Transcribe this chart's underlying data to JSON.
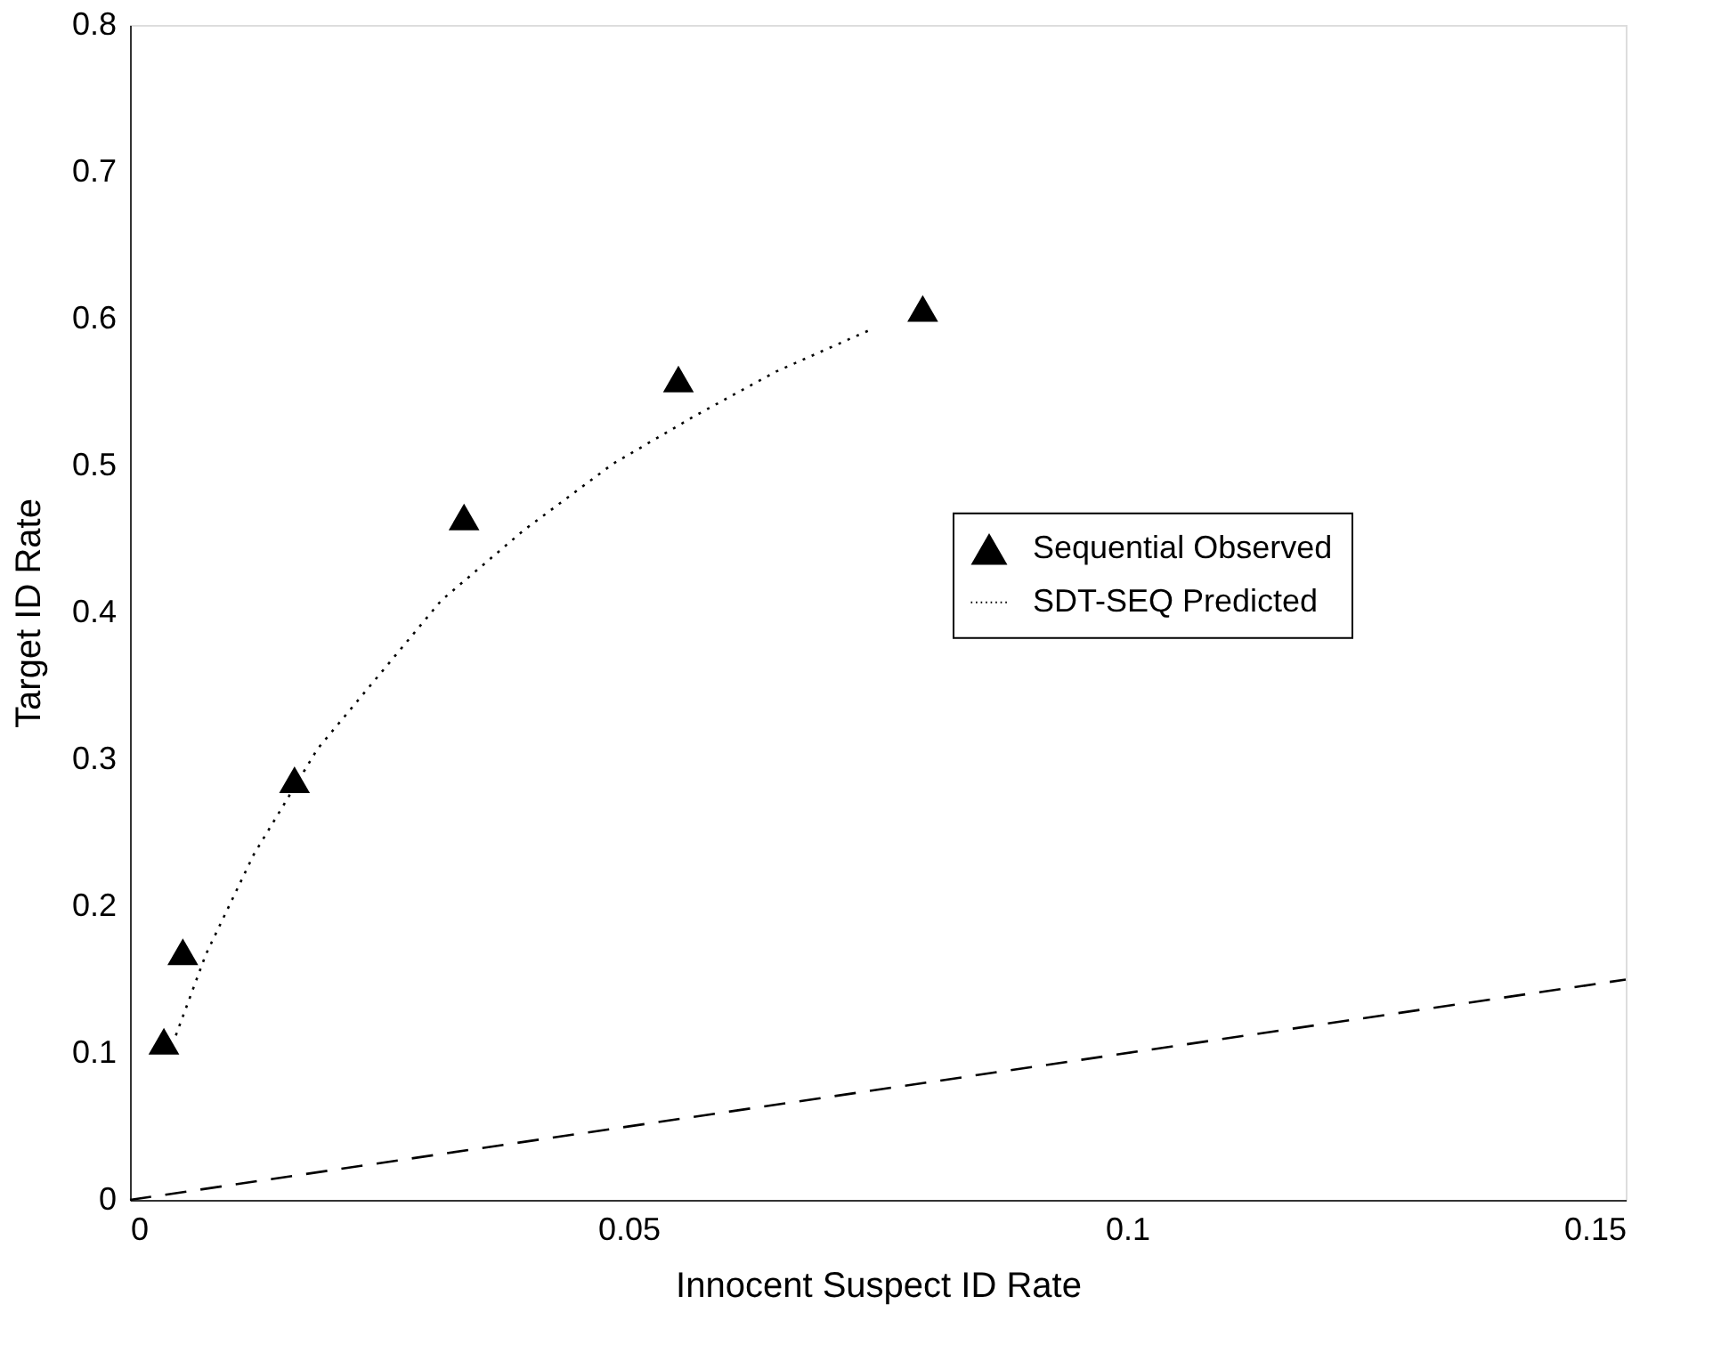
{
  "chart_data": {
    "type": "scatter",
    "xlabel": "Innocent Suspect ID Rate",
    "ylabel": "Target ID Rate",
    "xlim": [
      0,
      0.15
    ],
    "xticks": [
      0,
      0.05,
      0.1,
      0.15
    ],
    "ylim": [
      0,
      0.8
    ],
    "yticks": [
      0,
      0.1,
      0.2,
      0.3,
      0.4,
      0.5,
      0.6,
      0.7,
      0.8
    ],
    "grid": false,
    "legend": "right",
    "series": [
      {
        "name": "Sequential Observed",
        "type": "scatter",
        "marker": "triangle",
        "color": "#000000",
        "x": [
          0.0034,
          0.0053,
          0.0165,
          0.0335,
          0.055,
          0.0795
        ],
        "values": [
          0.108,
          0.169,
          0.286,
          0.465,
          0.559,
          0.607
        ]
      },
      {
        "name": "SDT-SEQ Predicted",
        "type": "line",
        "marker": "none",
        "line_style": "dotted",
        "color": "#000000",
        "x": [
          0.0046,
          0.0076,
          0.0124,
          0.0188,
          0.0312,
          0.0395,
          0.0484,
          0.0567,
          0.0648,
          0.0741
        ],
        "values": [
          0.112,
          0.167,
          0.235,
          0.307,
          0.408,
          0.456,
          0.501,
          0.534,
          0.564,
          0.592
        ]
      },
      {
        "type": "line",
        "marker": "none",
        "line_style": "dashed",
        "color": "#000000",
        "x": [
          0,
          0.15
        ],
        "values": [
          0,
          0.15
        ]
      }
    ]
  }
}
